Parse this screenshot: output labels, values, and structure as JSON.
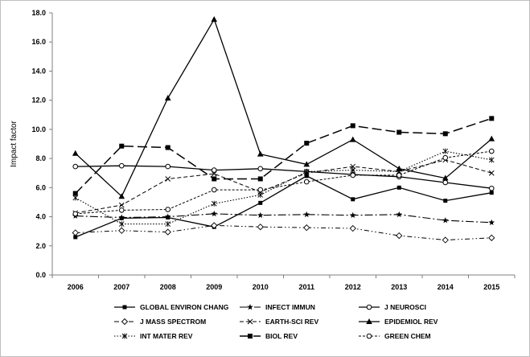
{
  "chart_data": {
    "type": "line",
    "ylabel": "Impact factor",
    "xlabel": "",
    "x": [
      "2006",
      "2007",
      "2008",
      "2009",
      "2010",
      "2011",
      "2012",
      "2013",
      "2014",
      "2015"
    ],
    "ylim": [
      0,
      18
    ],
    "yticks": [
      "0.0",
      "2.0",
      "4.0",
      "6.0",
      "8.0",
      "10.0",
      "12.0",
      "14.0",
      "16.0",
      "18.0"
    ],
    "grid": false,
    "legend_position": "bottom",
    "series": [
      {
        "name": "GLOBAL ENVIRON CHANG",
        "values": [
          2.6,
          3.9,
          3.95,
          3.3,
          4.95,
          6.8,
          5.2,
          6.0,
          5.1,
          5.65
        ]
      },
      {
        "name": "INFECT IMMUN",
        "values": [
          4.05,
          3.95,
          4.0,
          4.2,
          4.1,
          4.15,
          4.1,
          4.15,
          3.75,
          3.6
        ]
      },
      {
        "name": "J NEUROSCI",
        "values": [
          7.45,
          7.5,
          7.45,
          7.2,
          7.3,
          7.1,
          6.9,
          6.75,
          6.35,
          5.95
        ]
      },
      {
        "name": "J MASS SPECTROM",
        "values": [
          2.9,
          3.05,
          2.95,
          3.4,
          3.3,
          3.25,
          3.2,
          2.7,
          2.4,
          2.55
        ]
      },
      {
        "name": "EARTH-SCI REV",
        "values": [
          4.25,
          4.8,
          6.6,
          6.95,
          5.7,
          7.0,
          7.45,
          7.1,
          7.9,
          7.0
        ]
      },
      {
        "name": "EPIDEMIOL REV",
        "values": [
          8.35,
          5.4,
          12.15,
          17.55,
          8.3,
          7.6,
          9.3,
          7.3,
          6.65,
          9.35
        ]
      },
      {
        "name": "INT MATER REV",
        "values": [
          5.3,
          3.5,
          3.5,
          4.9,
          5.5,
          7.1,
          7.2,
          7.1,
          8.5,
          7.9
        ]
      },
      {
        "name": "BIOL REV",
        "values": [
          5.6,
          8.85,
          8.75,
          6.6,
          6.6,
          9.05,
          10.25,
          9.8,
          9.7,
          10.75
        ]
      },
      {
        "name": "GREEN CHEM",
        "values": [
          4.2,
          4.45,
          4.5,
          5.85,
          5.85,
          6.4,
          6.85,
          6.85,
          8.05,
          8.5
        ]
      }
    ],
    "styles": {
      "GLOBAL ENVIRON CHANG": {
        "dash": "",
        "marker": "square-filled",
        "width": 1.3
      },
      "INFECT IMMUN": {
        "dash": "10 3 2 3",
        "marker": "star",
        "width": 1.1
      },
      "J NEUROSCI": {
        "dash": "",
        "marker": "circle-open",
        "width": 1.3
      },
      "J MASS SPECTROM": {
        "dash": "6 3 1.5 3 1.5 3",
        "marker": "diamond-open",
        "width": 1.0
      },
      "EARTH-SCI REV": {
        "dash": "5 3",
        "marker": "x",
        "width": 1.0
      },
      "EPIDEMIOL REV": {
        "dash": "",
        "marker": "triangle-filled",
        "width": 1.3
      },
      "INT MATER REV": {
        "dash": "1.5 2",
        "marker": "asterisk",
        "width": 1.1
      },
      "BIOL REV": {
        "dash": "12 5",
        "marker": "square-filled-large",
        "width": 1.5
      },
      "GREEN CHEM": {
        "dash": "3 2",
        "marker": "circle-open",
        "width": 1.0
      }
    }
  }
}
